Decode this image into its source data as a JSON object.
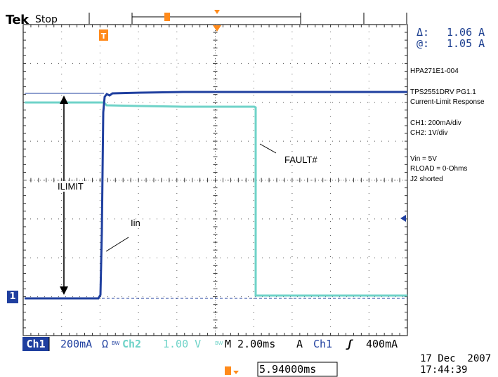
{
  "header": {
    "brand": "Tek",
    "state": "Stop"
  },
  "measurements": {
    "delta_symbol": "Δ:",
    "delta_value": "1.06 A",
    "at_symbol": "@:",
    "at_value": "1.05 A"
  },
  "side_notes": {
    "board_id": "HPA271E1-004",
    "title_line1": "TPS2551DRV PG1.1",
    "title_line2": "Current-Limit Response",
    "ch1_scale": "CH1: 200mA/div",
    "ch2_scale": "CH2: 1V/div",
    "vin": "Vin = 5V",
    "rload": "RLOAD = 0-Ohms",
    "j2": "J2 shorted"
  },
  "annotations": {
    "ilimit": "ILIMIT",
    "iin": "Iin",
    "fault": "FAULT#"
  },
  "channel_marker": "1",
  "status_bar": {
    "ch1_label": "Ch1",
    "ch1_scale": "200mA",
    "ch1_coupling": "Ω",
    "ch1_bw": "BW",
    "ch2_label": "Ch2",
    "ch2_scale": "1.00 V",
    "ch2_bw": "BW",
    "timebase": "M 2.00ms",
    "acq_mode": "A",
    "trig_source": "Ch1",
    "trig_slope": "ʃ",
    "trig_level": "400mA"
  },
  "trigger_position": "5.94000ms",
  "date": "17 Dec  2007",
  "time": "17:44:39",
  "colors": {
    "ch1": "#1f3f9f",
    "ch2": "#6fd3c8",
    "grid": "#444444",
    "label_bg": "#2a3f9a"
  }
}
